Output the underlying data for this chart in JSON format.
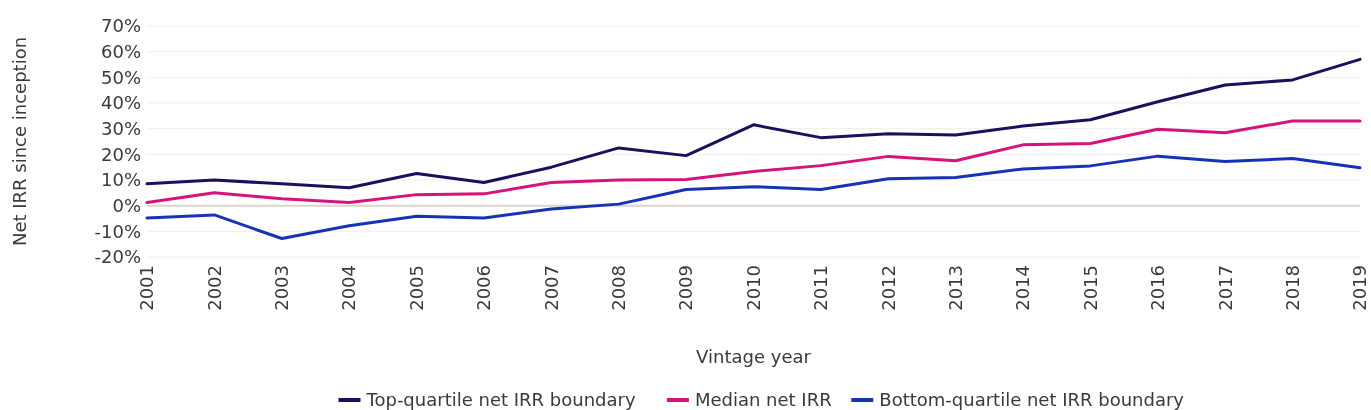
{
  "chart_data": {
    "type": "line",
    "xlabel": "Vintage year",
    "ylabel": "Net IRR since inception",
    "categories": [
      "2001",
      "2002",
      "2003",
      "2004",
      "2005",
      "2006",
      "2007",
      "2008",
      "2009",
      "2010",
      "2011",
      "2012",
      "2013",
      "2014",
      "2015",
      "2016",
      "2017",
      "2018",
      "2019"
    ],
    "ylim": [
      -20,
      70
    ],
    "yticks": [
      {
        "value": -20,
        "label": "-20%"
      },
      {
        "value": -10,
        "label": "-10%"
      },
      {
        "value": 0,
        "label": "0%"
      },
      {
        "value": 10,
        "label": "10%"
      },
      {
        "value": 20,
        "label": "20%"
      },
      {
        "value": 30,
        "label": "30%"
      },
      {
        "value": 40,
        "label": "40%"
      },
      {
        "value": 50,
        "label": "50%"
      },
      {
        "value": 60,
        "label": "60%"
      },
      {
        "value": 70,
        "label": "70%"
      }
    ],
    "grid": "y",
    "legend": "bottom",
    "marker": "none",
    "line_style": "solid",
    "ref_lines": [
      {
        "axis": "y",
        "value": 0,
        "color": "#d9d4cc"
      }
    ],
    "series": [
      {
        "name": "Top-quartile net IRR boundary",
        "color": "#1c0f5e",
        "values": [
          8.5,
          10,
          8.5,
          7,
          12.5,
          9,
          15,
          22.5,
          19.5,
          31.5,
          26.5,
          28,
          27.5,
          31,
          33.5,
          40.5,
          47,
          49,
          57
        ]
      },
      {
        "name": "Median net IRR",
        "color": "#d6137b",
        "values": [
          1.2,
          5,
          2.7,
          1.2,
          4.3,
          4.6,
          9,
          10,
          10.2,
          13.3,
          15.6,
          19.2,
          17.5,
          23.7,
          24.2,
          29.8,
          28.4,
          33,
          33
        ]
      },
      {
        "name": "Bottom-quartile net IRR boundary",
        "color": "#1633b5",
        "values": [
          -4.8,
          -3.6,
          -12.8,
          -7.8,
          -4.1,
          -4.8,
          -1.3,
          0.6,
          6.3,
          7.4,
          6.3,
          10.5,
          11,
          14.3,
          15.5,
          19.3,
          17.2,
          18.4,
          14.8
        ]
      }
    ]
  }
}
